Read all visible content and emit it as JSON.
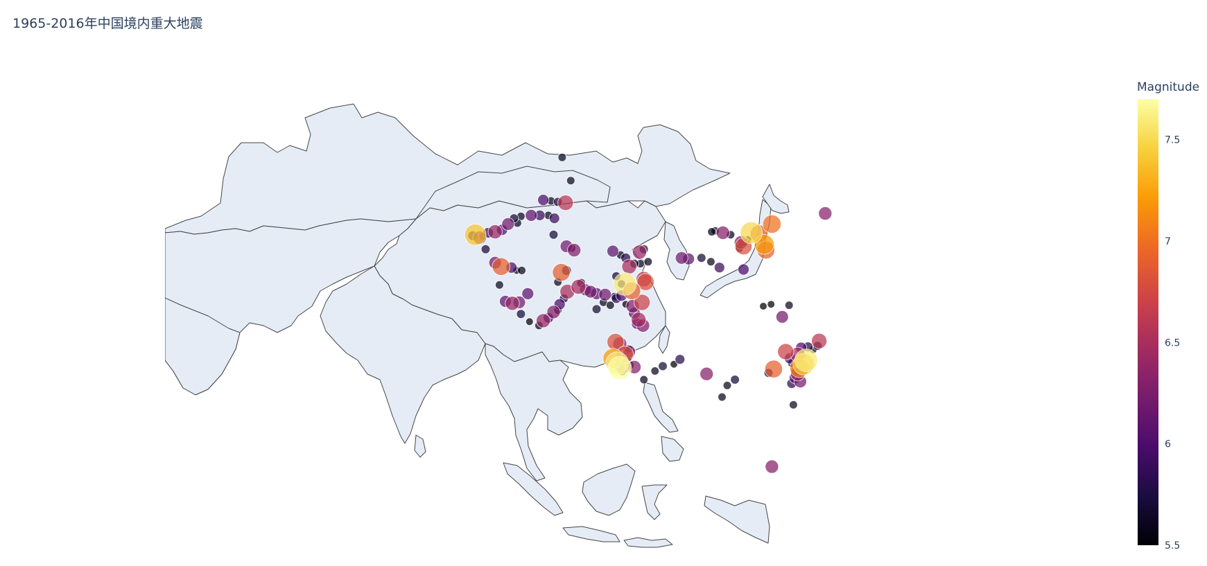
{
  "title": "1965-2016年中国境内重大地震",
  "colorbar": {
    "title": "Magnitude",
    "min": 5.5,
    "max": 7.7,
    "ticks": [
      5.5,
      6,
      6.5,
      7,
      7.5
    ],
    "colorscale": [
      "#000004",
      "#1b0c41",
      "#4a0c6b",
      "#781c6d",
      "#a52c60",
      "#cf4446",
      "#ed6925",
      "#fb9b06",
      "#f7d13d",
      "#fcffa4"
    ]
  },
  "map": {
    "projection": "equirectangular",
    "lon_range": [
      44,
      143
    ],
    "lat_range": [
      -11,
      56
    ],
    "land_color": "#e5ecf6",
    "border_color": "#444444"
  },
  "quakes": [
    {
      "lon": 80.1,
      "lat": 39.6,
      "mag": 7.4
    },
    {
      "lon": 80.6,
      "lat": 39.3,
      "mag": 6.3
    },
    {
      "lon": 79.8,
      "lat": 39.5,
      "mag": 5.8
    },
    {
      "lon": 81.0,
      "lat": 39.4,
      "mag": 5.6
    },
    {
      "lon": 81.6,
      "lat": 39.8,
      "mag": 5.9
    },
    {
      "lon": 82.4,
      "lat": 39.9,
      "mag": 6.4
    },
    {
      "lon": 83.2,
      "lat": 40.1,
      "mag": 6.0
    },
    {
      "lon": 83.9,
      "lat": 40.7,
      "mag": 6.2
    },
    {
      "lon": 84.6,
      "lat": 41.3,
      "mag": 5.7
    },
    {
      "lon": 85.4,
      "lat": 41.5,
      "mag": 5.6
    },
    {
      "lon": 86.6,
      "lat": 41.6,
      "mag": 6.1
    },
    {
      "lon": 87.6,
      "lat": 41.6,
      "mag": 5.9
    },
    {
      "lon": 88.6,
      "lat": 41.6,
      "mag": 5.6
    },
    {
      "lon": 89.3,
      "lat": 41.3,
      "mag": 5.9
    },
    {
      "lon": 85.0,
      "lat": 40.8,
      "mag": 5.6
    },
    {
      "lon": 88.0,
      "lat": 43.2,
      "mag": 6.0
    },
    {
      "lon": 88.9,
      "lat": 43.1,
      "mag": 5.6
    },
    {
      "lon": 89.7,
      "lat": 43.0,
      "mag": 5.7
    },
    {
      "lon": 90.6,
      "lat": 42.9,
      "mag": 6.6
    },
    {
      "lon": 90.2,
      "lat": 47.6,
      "mag": 5.6
    },
    {
      "lon": 91.2,
      "lat": 45.2,
      "mag": 5.6
    },
    {
      "lon": 81.3,
      "lat": 38.1,
      "mag": 5.7
    },
    {
      "lon": 82.4,
      "lat": 36.7,
      "mag": 6.2
    },
    {
      "lon": 83.1,
      "lat": 36.3,
      "mag": 6.9
    },
    {
      "lon": 84.3,
      "lat": 36.2,
      "mag": 6.0
    },
    {
      "lon": 84.9,
      "lat": 35.9,
      "mag": 5.5
    },
    {
      "lon": 85.5,
      "lat": 35.9,
      "mag": 5.6
    },
    {
      "lon": 82.9,
      "lat": 34.4,
      "mag": 5.6
    },
    {
      "lon": 83.6,
      "lat": 32.7,
      "mag": 6.1
    },
    {
      "lon": 84.4,
      "lat": 32.5,
      "mag": 6.4
    },
    {
      "lon": 85.2,
      "lat": 32.6,
      "mag": 6.2
    },
    {
      "lon": 86.2,
      "lat": 33.5,
      "mag": 6.1
    },
    {
      "lon": 85.4,
      "lat": 31.4,
      "mag": 5.7
    },
    {
      "lon": 86.4,
      "lat": 30.6,
      "mag": 5.5
    },
    {
      "lon": 87.5,
      "lat": 30.2,
      "mag": 5.6
    },
    {
      "lon": 88.0,
      "lat": 30.7,
      "mag": 6.4
    },
    {
      "lon": 88.6,
      "lat": 31.0,
      "mag": 5.9
    },
    {
      "lon": 89.2,
      "lat": 31.6,
      "mag": 6.3
    },
    {
      "lon": 89.7,
      "lat": 31.8,
      "mag": 5.6
    },
    {
      "lon": 89.9,
      "lat": 32.4,
      "mag": 6.0
    },
    {
      "lon": 90.4,
      "lat": 33.0,
      "mag": 5.7
    },
    {
      "lon": 90.8,
      "lat": 33.7,
      "mag": 6.5
    },
    {
      "lon": 89.7,
      "lat": 34.7,
      "mag": 5.6
    },
    {
      "lon": 90.1,
      "lat": 35.7,
      "mag": 6.9
    },
    {
      "lon": 90.7,
      "lat": 35.9,
      "mag": 5.8
    },
    {
      "lon": 89.2,
      "lat": 39.6,
      "mag": 5.7
    },
    {
      "lon": 90.7,
      "lat": 38.4,
      "mag": 6.2
    },
    {
      "lon": 91.3,
      "lat": 38.2,
      "mag": 5.6
    },
    {
      "lon": 91.6,
      "lat": 38.0,
      "mag": 6.3
    },
    {
      "lon": 92.1,
      "lat": 34.2,
      "mag": 6.5
    },
    {
      "lon": 92.4,
      "lat": 34.6,
      "mag": 5.7
    },
    {
      "lon": 92.9,
      "lat": 33.9,
      "mag": 6.1
    },
    {
      "lon": 93.5,
      "lat": 33.7,
      "mag": 6.2
    },
    {
      "lon": 94.2,
      "lat": 33.5,
      "mag": 6.1
    },
    {
      "lon": 95.2,
      "lat": 33.4,
      "mag": 6.2
    },
    {
      "lon": 96.3,
      "lat": 33.2,
      "mag": 5.6
    },
    {
      "lon": 97.1,
      "lat": 34.5,
      "mag": 5.6
    },
    {
      "lon": 96.5,
      "lat": 35.3,
      "mag": 5.7
    },
    {
      "lon": 96.1,
      "lat": 37.9,
      "mag": 6.1
    },
    {
      "lon": 97.0,
      "lat": 37.5,
      "mag": 5.6
    },
    {
      "lon": 97.6,
      "lat": 37.2,
      "mag": 5.8
    },
    {
      "lon": 98.0,
      "lat": 36.3,
      "mag": 6.5
    },
    {
      "lon": 98.6,
      "lat": 36.6,
      "mag": 5.7
    },
    {
      "lon": 99.3,
      "lat": 36.6,
      "mag": 5.6
    },
    {
      "lon": 100.2,
      "lat": 36.8,
      "mag": 5.6
    },
    {
      "lon": 99.2,
      "lat": 37.8,
      "mag": 6.4
    },
    {
      "lon": 99.7,
      "lat": 38.1,
      "mag": 5.7
    },
    {
      "lon": 94.2,
      "lat": 31.9,
      "mag": 5.7
    },
    {
      "lon": 95.0,
      "lat": 32.6,
      "mag": 5.6
    },
    {
      "lon": 96.5,
      "lat": 33.0,
      "mag": 5.8
    },
    {
      "lon": 95.8,
      "lat": 32.3,
      "mag": 5.6
    },
    {
      "lon": 97.5,
      "lat": 34.5,
      "mag": 7.6
    },
    {
      "lon": 98.3,
      "lat": 33.8,
      "mag": 6.9
    },
    {
      "lon": 99.9,
      "lat": 34.7,
      "mag": 6.8
    },
    {
      "lon": 99.7,
      "lat": 35.0,
      "mag": 6.6
    },
    {
      "lon": 97.1,
      "lat": 33.3,
      "mag": 6.0
    },
    {
      "lon": 97.6,
      "lat": 32.4,
      "mag": 5.5
    },
    {
      "lon": 98.4,
      "lat": 32.2,
      "mag": 6.3
    },
    {
      "lon": 99.5,
      "lat": 32.6,
      "mag": 6.7
    },
    {
      "lon": 98.6,
      "lat": 31.5,
      "mag": 6.1
    },
    {
      "lon": 99.1,
      "lat": 30.8,
      "mag": 6.5
    },
    {
      "lon": 98.9,
      "lat": 30.4,
      "mag": 6.0
    },
    {
      "lon": 99.6,
      "lat": 30.2,
      "mag": 6.3
    },
    {
      "lon": 96.4,
      "lat": 28.5,
      "mag": 6.8
    },
    {
      "lon": 96.9,
      "lat": 28.3,
      "mag": 6.4
    },
    {
      "lon": 97.9,
      "lat": 27.8,
      "mag": 5.6
    },
    {
      "lon": 96.1,
      "lat": 26.8,
      "mag": 7.2
    },
    {
      "lon": 97.5,
      "lat": 27.2,
      "mag": 6.8
    },
    {
      "lon": 98.0,
      "lat": 27.5,
      "mag": 6.2
    },
    {
      "lon": 96.6,
      "lat": 26.3,
      "mag": 7.6
    },
    {
      "lon": 97.2,
      "lat": 26.0,
      "mag": 6.6
    },
    {
      "lon": 97.0,
      "lat": 26.5,
      "mag": 5.9
    },
    {
      "lon": 97.8,
      "lat": 26.6,
      "mag": 5.6
    },
    {
      "lon": 96.9,
      "lat": 25.8,
      "mag": 7.7
    },
    {
      "lon": 97.2,
      "lat": 25.5,
      "mag": 5.7
    },
    {
      "lon": 98.1,
      "lat": 26.1,
      "mag": 5.6
    },
    {
      "lon": 98.6,
      "lat": 25.9,
      "mag": 6.3
    },
    {
      "lon": 99.7,
      "lat": 24.6,
      "mag": 5.6
    },
    {
      "lon": 101.0,
      "lat": 25.5,
      "mag": 5.6
    },
    {
      "lon": 101.9,
      "lat": 26.0,
      "mag": 5.7
    },
    {
      "lon": 103.9,
      "lat": 26.7,
      "mag": 5.8
    },
    {
      "lon": 103.2,
      "lat": 26.2,
      "mag": 5.5
    },
    {
      "lon": 107.0,
      "lat": 25.2,
      "mag": 6.3
    },
    {
      "lon": 104.1,
      "lat": 37.2,
      "mag": 6.2
    },
    {
      "lon": 104.9,
      "lat": 37.1,
      "mag": 6.1
    },
    {
      "lon": 106.4,
      "lat": 37.2,
      "mag": 5.7
    },
    {
      "lon": 107.5,
      "lat": 36.8,
      "mag": 5.6
    },
    {
      "lon": 108.5,
      "lat": 36.2,
      "mag": 5.9
    },
    {
      "lon": 112.2,
      "lat": 39.8,
      "mag": 7.5
    },
    {
      "lon": 111.8,
      "lat": 39.1,
      "mag": 5.5
    },
    {
      "lon": 113.1,
      "lat": 39.7,
      "mag": 6.9
    },
    {
      "lon": 114.6,
      "lat": 40.7,
      "mag": 7.0
    },
    {
      "lon": 113.7,
      "lat": 38.6,
      "mag": 7.2
    },
    {
      "lon": 113.9,
      "lat": 38.0,
      "mag": 6.9
    },
    {
      "lon": 111.3,
      "lat": 38.4,
      "mag": 6.8
    },
    {
      "lon": 111.0,
      "lat": 38.8,
      "mag": 6.3
    },
    {
      "lon": 111.2,
      "lat": 38.9,
      "mag": 5.8
    },
    {
      "lon": 110.8,
      "lat": 38.2,
      "mag": 5.6
    },
    {
      "lon": 111.3,
      "lat": 36.0,
      "mag": 6.0
    },
    {
      "lon": 113.6,
      "lat": 32.2,
      "mag": 5.5
    },
    {
      "lon": 114.5,
      "lat": 32.4,
      "mag": 5.5
    },
    {
      "lon": 115.8,
      "lat": 31.1,
      "mag": 6.2
    },
    {
      "lon": 116.6,
      "lat": 32.3,
      "mag": 5.6
    },
    {
      "lon": 108.0,
      "lat": 40.0,
      "mag": 5.6
    },
    {
      "lon": 108.9,
      "lat": 39.8,
      "mag": 6.3
    },
    {
      "lon": 109.8,
      "lat": 39.6,
      "mag": 5.6
    },
    {
      "lon": 107.6,
      "lat": 39.9,
      "mag": 5.6
    },
    {
      "lon": 120.8,
      "lat": 41.8,
      "mag": 6.3
    },
    {
      "lon": 116.2,
      "lat": 27.5,
      "mag": 6.7
    },
    {
      "lon": 116.7,
      "lat": 26.8,
      "mag": 6.0
    },
    {
      "lon": 116.9,
      "lat": 26.3,
      "mag": 5.6
    },
    {
      "lon": 117.3,
      "lat": 25.5,
      "mag": 5.7
    },
    {
      "lon": 117.8,
      "lat": 25.8,
      "mag": 7.1
    },
    {
      "lon": 118.3,
      "lat": 26.2,
      "mag": 7.4
    },
    {
      "lon": 118.6,
      "lat": 26.6,
      "mag": 7.6
    },
    {
      "lon": 117.6,
      "lat": 25.2,
      "mag": 6.4
    },
    {
      "lon": 117.3,
      "lat": 24.8,
      "mag": 6.1
    },
    {
      "lon": 117.9,
      "lat": 24.4,
      "mag": 6.2
    },
    {
      "lon": 116.9,
      "lat": 24.2,
      "mag": 5.8
    },
    {
      "lon": 114.8,
      "lat": 25.7,
      "mag": 6.9
    },
    {
      "lon": 114.2,
      "lat": 25.3,
      "mag": 5.7
    },
    {
      "lon": 118.0,
      "lat": 27.9,
      "mag": 6.0
    },
    {
      "lon": 118.8,
      "lat": 28.0,
      "mag": 5.8
    },
    {
      "lon": 119.4,
      "lat": 27.7,
      "mag": 5.5
    },
    {
      "lon": 120.1,
      "lat": 28.6,
      "mag": 6.6
    },
    {
      "lon": 119.9,
      "lat": 28.1,
      "mag": 5.7
    },
    {
      "lon": 117.6,
      "lat": 27.2,
      "mag": 6.5
    },
    {
      "lon": 117.1,
      "lat": 22.0,
      "mag": 5.6
    },
    {
      "lon": 110.3,
      "lat": 24.6,
      "mag": 5.7
    },
    {
      "lon": 109.4,
      "lat": 24.0,
      "mag": 5.6
    },
    {
      "lon": 108.8,
      "lat": 22.8,
      "mag": 5.6
    },
    {
      "lon": 114.6,
      "lat": 15.6,
      "mag": 6.3
    }
  ]
}
